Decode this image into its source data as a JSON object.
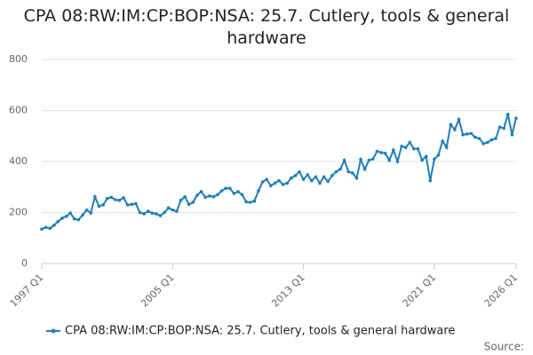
{
  "chart_data": {
    "type": "line",
    "title": "CPA 08:RW:IM:CP:BOP:NSA: 25.7. Cutlery, tools & general hardware",
    "source": "Source:",
    "categories": [
      "1997 Q1",
      null,
      null,
      null,
      null,
      null,
      null,
      null,
      null,
      null,
      null,
      null,
      null,
      null,
      null,
      null,
      null,
      null,
      null,
      null,
      null,
      null,
      null,
      null,
      null,
      null,
      null,
      null,
      null,
      null,
      null,
      null,
      "2005 Q1",
      null,
      null,
      null,
      null,
      null,
      null,
      null,
      null,
      null,
      null,
      null,
      null,
      null,
      null,
      null,
      null,
      null,
      null,
      null,
      null,
      null,
      null,
      null,
      null,
      null,
      null,
      null,
      null,
      null,
      null,
      null,
      "2013 Q1",
      null,
      null,
      null,
      null,
      null,
      null,
      null,
      null,
      null,
      null,
      null,
      null,
      null,
      null,
      null,
      null,
      null,
      null,
      null,
      null,
      null,
      null,
      null,
      null,
      null,
      null,
      null,
      null,
      null,
      null,
      null,
      "2021 Q1",
      null,
      null,
      null,
      null,
      null,
      null,
      null,
      null,
      null,
      null,
      null,
      null,
      null,
      null,
      null,
      null,
      null,
      null,
      null,
      "2026 Q1"
    ],
    "series": [
      {
        "name": "CPA 08:RW:IM:CP:BOP:NSA: 25.7. Cutlery, tools & general hardware",
        "color": "#1f7fb8",
        "values": [
          135,
          142,
          138,
          150,
          165,
          178,
          185,
          198,
          175,
          172,
          190,
          210,
          198,
          262,
          225,
          230,
          255,
          260,
          250,
          248,
          258,
          230,
          232,
          235,
          200,
          195,
          205,
          198,
          195,
          188,
          200,
          218,
          210,
          205,
          248,
          262,
          232,
          240,
          268,
          282,
          260,
          265,
          262,
          270,
          285,
          295,
          295,
          275,
          282,
          270,
          242,
          240,
          245,
          285,
          320,
          330,
          305,
          315,
          325,
          310,
          315,
          335,
          345,
          360,
          330,
          348,
          325,
          340,
          315,
          340,
          322,
          345,
          360,
          370,
          405,
          360,
          355,
          335,
          408,
          370,
          405,
          410,
          440,
          435,
          432,
          405,
          445,
          400,
          460,
          455,
          475,
          450,
          450,
          405,
          420,
          325,
          410,
          425,
          480,
          455,
          545,
          525,
          565,
          505,
          508,
          510,
          495,
          490,
          470,
          475,
          485,
          490,
          535,
          530,
          585,
          505,
          570
        ]
      }
    ],
    "ylim": [
      0,
      800
    ],
    "yticks": [
      0,
      200,
      400,
      600,
      800
    ],
    "grid": true,
    "legend": "bottom"
  }
}
